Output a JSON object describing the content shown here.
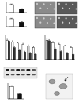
{
  "chart_data": [
    {
      "type": "bar",
      "categories": [
        null,
        null
      ],
      "values": [
        100,
        42
      ],
      "errors": [
        8,
        6
      ],
      "colors": [
        "#ffffff",
        "#111111"
      ],
      "ylim": [
        0,
        130
      ],
      "tick_labels": false
    },
    {
      "type": "bar",
      "categories": [
        null,
        null
      ],
      "values": [
        100,
        58
      ],
      "errors": [
        7,
        6
      ],
      "colors": [
        "#ffffff",
        "#111111"
      ],
      "ylim": [
        0,
        130
      ],
      "tick_labels": false
    },
    {
      "type": "bar",
      "categories": [
        null,
        null,
        null,
        null,
        null,
        null
      ],
      "series": [
        {
          "color": "#ffffff",
          "values": [
            100,
            92,
            86,
            80,
            72,
            64
          ],
          "errors": [
            6,
            6,
            5,
            5,
            5,
            5
          ]
        },
        {
          "color": "#333333",
          "values": [
            96,
            62,
            48,
            40,
            34,
            28
          ],
          "errors": [
            6,
            5,
            5,
            4,
            4,
            4
          ]
        }
      ],
      "ylim": [
        0,
        130
      ],
      "tick_labels": false
    },
    {
      "type": "bar",
      "categories": [
        null,
        null,
        null,
        null,
        null
      ],
      "series": [
        {
          "color": "#ffffff",
          "values": [
            100,
            88,
            80,
            70,
            62
          ],
          "errors": [
            6,
            6,
            5,
            5,
            5
          ]
        },
        {
          "color": "#333333",
          "values": [
            98,
            56,
            42,
            34,
            26
          ],
          "errors": [
            6,
            5,
            4,
            4,
            4
          ]
        }
      ],
      "ylim": [
        0,
        130
      ],
      "tick_labels": false
    },
    {
      "type": "bar",
      "categories": [
        null,
        null
      ],
      "values": [
        100,
        40
      ],
      "errors": [
        9,
        6
      ],
      "colors": [
        "#ffffff",
        "#111111"
      ],
      "ylim": [
        0,
        130
      ],
      "tick_labels": false
    }
  ]
}
